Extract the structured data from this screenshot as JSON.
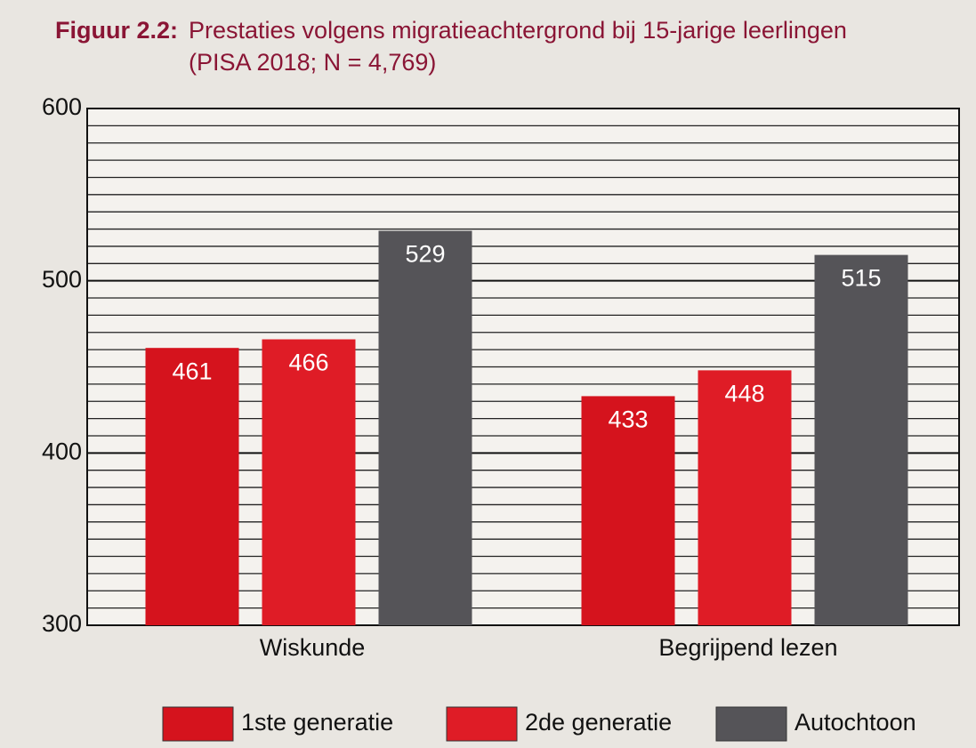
{
  "chart_data": {
    "type": "bar",
    "figure_label": "Figuur 2.2:",
    "title": "Prestaties volgens migratieachtergrond bij 15-jarige leerlingen",
    "subtitle": "(PISA 2018; N = 4,769)",
    "categories": [
      "Wiskunde",
      "Begrijpend lezen"
    ],
    "series": [
      {
        "name": "1ste generatie",
        "color": "#d5131d",
        "values": [
          461,
          433
        ]
      },
      {
        "name": "2de generatie",
        "color": "#df1c26",
        "values": [
          466,
          448
        ]
      },
      {
        "name": "Autochtoon",
        "color": "#555458",
        "values": [
          529,
          515
        ]
      }
    ],
    "ylim": [
      300,
      600
    ],
    "yticks": [
      300,
      400,
      500,
      600
    ],
    "minor_yticks": [
      310,
      320,
      330,
      340,
      350,
      360,
      370,
      380,
      390,
      410,
      420,
      430,
      440,
      450,
      460,
      470,
      480,
      490,
      510,
      520,
      530,
      540,
      550,
      560,
      570,
      580,
      590
    ],
    "grid": true,
    "legend": "bottom"
  }
}
